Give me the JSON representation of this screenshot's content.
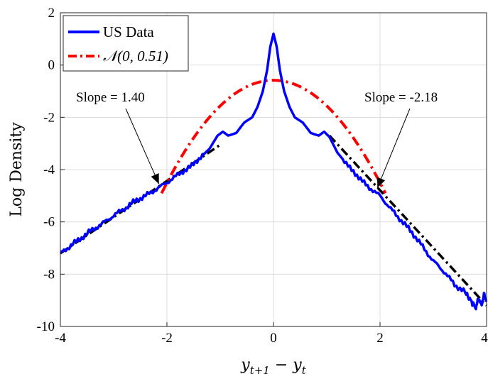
{
  "chart_data": {
    "type": "line",
    "xlabel": "y_{t+1} − y_t",
    "ylabel": "Log Density",
    "xlim": [
      -4,
      4
    ],
    "ylim": [
      -10,
      2
    ],
    "x_ticks": [
      "-4",
      "-2",
      "0",
      "2",
      "4"
    ],
    "y_ticks": [
      "-10",
      "-8",
      "-6",
      "-4",
      "-2",
      "0",
      "2"
    ],
    "grid": true,
    "legend_position": "top-left",
    "series": [
      {
        "name": "US Data",
        "color": "#0000ff",
        "style": "solid",
        "x": [
          -4.0,
          -3.8,
          -3.6,
          -3.4,
          -3.2,
          -3.0,
          -2.8,
          -2.6,
          -2.4,
          -2.2,
          -2.0,
          -1.8,
          -1.6,
          -1.4,
          -1.2,
          -1.05,
          -0.95,
          -0.85,
          -0.7,
          -0.55,
          -0.4,
          -0.3,
          -0.2,
          -0.12,
          -0.06,
          0.0,
          0.06,
          0.12,
          0.2,
          0.3,
          0.4,
          0.55,
          0.7,
          0.85,
          0.95,
          1.05,
          1.2,
          1.4,
          1.6,
          1.8,
          2.0,
          2.2,
          2.4,
          2.6,
          2.8,
          3.0,
          3.2,
          3.4,
          3.6,
          3.7,
          3.8,
          3.85,
          3.9,
          3.95,
          4.0
        ],
        "y": [
          -7.2,
          -6.9,
          -6.6,
          -6.3,
          -6.05,
          -5.75,
          -5.5,
          -5.2,
          -5.0,
          -4.75,
          -4.5,
          -4.2,
          -3.95,
          -3.6,
          -3.2,
          -2.7,
          -2.55,
          -2.7,
          -2.6,
          -2.2,
          -2.0,
          -1.6,
          -1.0,
          -0.2,
          0.7,
          1.2,
          0.7,
          -0.2,
          -1.0,
          -1.6,
          -2.0,
          -2.2,
          -2.6,
          -2.7,
          -2.55,
          -2.75,
          -3.35,
          -3.85,
          -4.3,
          -4.7,
          -5.0,
          -5.5,
          -5.95,
          -6.4,
          -6.95,
          -7.5,
          -7.9,
          -8.4,
          -8.7,
          -9.0,
          -9.3,
          -8.9,
          -9.2,
          -8.8,
          -9.0
        ]
      },
      {
        "name": "𝒩(0, 0.51)",
        "color": "#ff0000",
        "style": "dash-dot",
        "mean": 0,
        "variance": 0.51,
        "x_range": [
          -2.1,
          2.1
        ]
      }
    ],
    "fit_lines": [
      {
        "x": [
          -4.0,
          -1.0
        ],
        "y": [
          -7.2,
          -3.05
        ],
        "color": "#000000",
        "style": "dash-dot"
      },
      {
        "x": [
          1.05,
          4.0
        ],
        "y": [
          -2.7,
          -9.2
        ],
        "color": "#000000",
        "style": "dash-dot"
      }
    ],
    "annotations": [
      {
        "text": "Slope = 1.40",
        "arrow_to": [
          -2.15,
          -4.55
        ]
      },
      {
        "text": "Slope = -2.18",
        "arrow_to": [
          1.95,
          -4.7
        ]
      }
    ]
  }
}
